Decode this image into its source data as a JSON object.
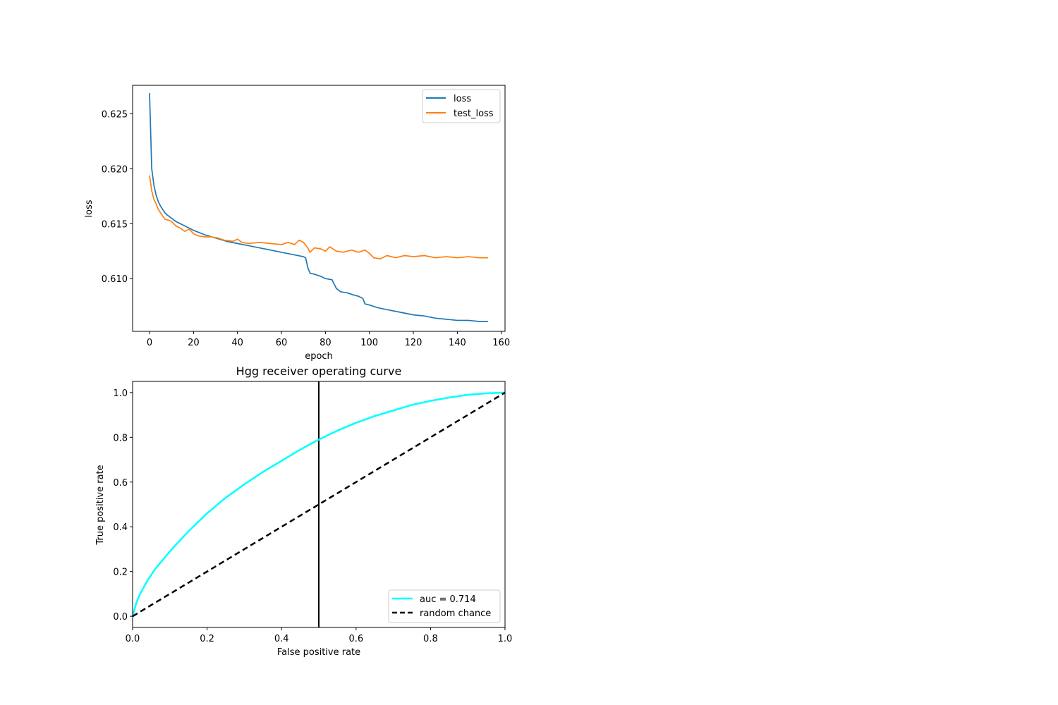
{
  "chart_data": [
    {
      "type": "line",
      "title": "",
      "xlabel": "epoch",
      "ylabel": "loss",
      "xlim": [
        -7.7,
        161.7
      ],
      "ylim": [
        0.6052,
        0.6276
      ],
      "xticks": [
        0,
        20,
        40,
        60,
        80,
        100,
        120,
        140,
        160
      ],
      "yticks": [
        0.61,
        0.615,
        0.62,
        0.625
      ],
      "xtick_labels": [
        "0",
        "20",
        "40",
        "60",
        "80",
        "100",
        "120",
        "140",
        "160"
      ],
      "ytick_labels": [
        "0.610",
        "0.615",
        "0.620",
        "0.625"
      ],
      "grid": false,
      "legend": "top-right",
      "series": [
        {
          "name": "loss",
          "color": "#1f77b4",
          "points": [
            [
              0,
              0.6269
            ],
            [
              1,
              0.62
            ],
            [
              2,
              0.6185
            ],
            [
              3,
              0.6176
            ],
            [
              4,
              0.617
            ],
            [
              5,
              0.6166
            ],
            [
              6,
              0.6163
            ],
            [
              7,
              0.616
            ],
            [
              8,
              0.6158
            ],
            [
              10,
              0.6155
            ],
            [
              12,
              0.6152
            ],
            [
              15,
              0.6149
            ],
            [
              20,
              0.6144
            ],
            [
              25,
              0.614
            ],
            [
              30,
              0.6137
            ],
            [
              35,
              0.6134
            ],
            [
              40,
              0.6132
            ],
            [
              45,
              0.613
            ],
            [
              50,
              0.6128
            ],
            [
              55,
              0.6126
            ],
            [
              60,
              0.6124
            ],
            [
              65,
              0.6122
            ],
            [
              70,
              0.612
            ],
            [
              71,
              0.6119
            ],
            [
              72,
              0.611
            ],
            [
              73,
              0.6105
            ],
            [
              75,
              0.6104
            ],
            [
              78,
              0.6102
            ],
            [
              80,
              0.61
            ],
            [
              83,
              0.6099
            ],
            [
              85,
              0.6091
            ],
            [
              87,
              0.6088
            ],
            [
              90,
              0.6087
            ],
            [
              93,
              0.6085
            ],
            [
              95,
              0.6084
            ],
            [
              97,
              0.6082
            ],
            [
              98,
              0.6077
            ],
            [
              100,
              0.6076
            ],
            [
              103,
              0.6074
            ],
            [
              105,
              0.6073
            ],
            [
              110,
              0.6071
            ],
            [
              115,
              0.6069
            ],
            [
              120,
              0.6067
            ],
            [
              125,
              0.6066
            ],
            [
              130,
              0.6064
            ],
            [
              135,
              0.6063
            ],
            [
              140,
              0.6062
            ],
            [
              145,
              0.6062
            ],
            [
              150,
              0.6061
            ],
            [
              154,
              0.6061
            ]
          ]
        },
        {
          "name": "test_loss",
          "color": "#ff7f0e",
          "points": [
            [
              0,
              0.6194
            ],
            [
              1,
              0.618
            ],
            [
              2,
              0.6172
            ],
            [
              3,
              0.6168
            ],
            [
              4,
              0.6163
            ],
            [
              5,
              0.616
            ],
            [
              6,
              0.6157
            ],
            [
              7,
              0.6154
            ],
            [
              9,
              0.6153
            ],
            [
              10,
              0.6152
            ],
            [
              11,
              0.615
            ],
            [
              12,
              0.6148
            ],
            [
              14,
              0.6146
            ],
            [
              16,
              0.6143
            ],
            [
              18,
              0.6145
            ],
            [
              20,
              0.6141
            ],
            [
              22,
              0.6139
            ],
            [
              25,
              0.6138
            ],
            [
              28,
              0.6138
            ],
            [
              31,
              0.6137
            ],
            [
              34,
              0.6135
            ],
            [
              38,
              0.6134
            ],
            [
              40,
              0.6136
            ],
            [
              42,
              0.6133
            ],
            [
              45,
              0.6132
            ],
            [
              50,
              0.6133
            ],
            [
              55,
              0.6132
            ],
            [
              60,
              0.6131
            ],
            [
              63,
              0.6133
            ],
            [
              66,
              0.6131
            ],
            [
              68,
              0.6135
            ],
            [
              70,
              0.6133
            ],
            [
              72,
              0.6128
            ],
            [
              73,
              0.6124
            ],
            [
              75,
              0.6128
            ],
            [
              78,
              0.6127
            ],
            [
              80,
              0.6125
            ],
            [
              82,
              0.6129
            ],
            [
              85,
              0.6125
            ],
            [
              88,
              0.6124
            ],
            [
              92,
              0.6126
            ],
            [
              95,
              0.6124
            ],
            [
              98,
              0.6126
            ],
            [
              100,
              0.6123
            ],
            [
              102,
              0.6119
            ],
            [
              105,
              0.6118
            ],
            [
              108,
              0.6121
            ],
            [
              112,
              0.6119
            ],
            [
              116,
              0.6121
            ],
            [
              120,
              0.612
            ],
            [
              125,
              0.6121
            ],
            [
              130,
              0.6119
            ],
            [
              135,
              0.612
            ],
            [
              140,
              0.6119
            ],
            [
              145,
              0.612
            ],
            [
              150,
              0.6119
            ],
            [
              154,
              0.6119
            ]
          ]
        }
      ]
    },
    {
      "type": "line",
      "title": "Hgg receiver operating curve",
      "xlabel": "False positive rate",
      "ylabel": "True positive rate",
      "xlim": [
        0.0,
        1.0
      ],
      "ylim": [
        -0.05,
        1.05
      ],
      "xticks": [
        0.0,
        0.2,
        0.4,
        0.6,
        0.8,
        1.0
      ],
      "yticks": [
        0.0,
        0.2,
        0.4,
        0.6,
        0.8,
        1.0
      ],
      "xtick_labels": [
        "0.0",
        "0.2",
        "0.4",
        "0.6",
        "0.8",
        "1.0"
      ],
      "ytick_labels": [
        "0.0",
        "0.2",
        "0.4",
        "0.6",
        "0.8",
        "1.0"
      ],
      "grid": false,
      "legend": "bottom-right",
      "vline_x": 0.5,
      "series": [
        {
          "name": "auc = 0.714",
          "color": "#00ffff",
          "points": [
            [
              0.0,
              0.0
            ],
            [
              0.01,
              0.06
            ],
            [
              0.02,
              0.1
            ],
            [
              0.04,
              0.16
            ],
            [
              0.06,
              0.21
            ],
            [
              0.08,
              0.25
            ],
            [
              0.1,
              0.29
            ],
            [
              0.15,
              0.38
            ],
            [
              0.2,
              0.46
            ],
            [
              0.25,
              0.53
            ],
            [
              0.3,
              0.59
            ],
            [
              0.35,
              0.645
            ],
            [
              0.4,
              0.695
            ],
            [
              0.45,
              0.745
            ],
            [
              0.5,
              0.79
            ],
            [
              0.55,
              0.83
            ],
            [
              0.6,
              0.865
            ],
            [
              0.65,
              0.895
            ],
            [
              0.7,
              0.92
            ],
            [
              0.75,
              0.945
            ],
            [
              0.8,
              0.963
            ],
            [
              0.85,
              0.978
            ],
            [
              0.9,
              0.99
            ],
            [
              0.95,
              0.997
            ],
            [
              1.0,
              1.0
            ]
          ]
        },
        {
          "name": "random chance",
          "color": "#000000",
          "points": [
            [
              0.0,
              0.0
            ],
            [
              1.0,
              1.0
            ]
          ]
        }
      ]
    }
  ]
}
